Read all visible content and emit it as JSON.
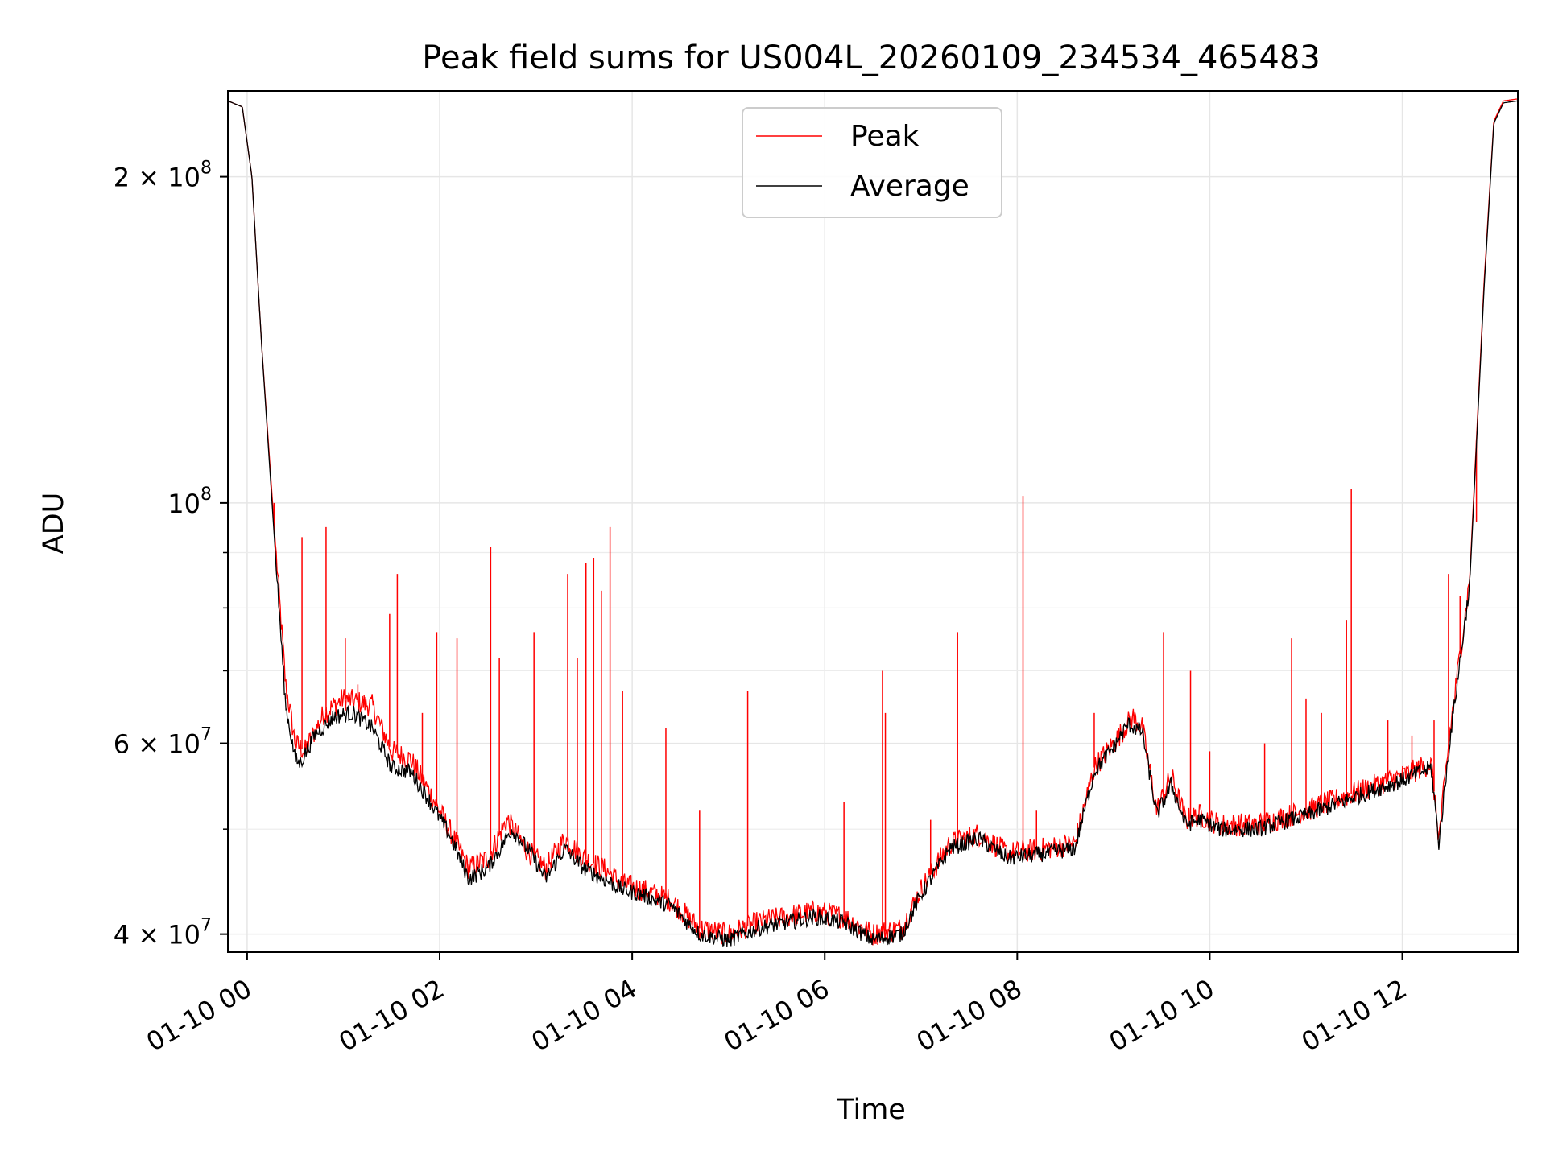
{
  "chart_data": {
    "type": "line",
    "title": "Peak field sums for US004L_20260109_234534_465483",
    "xlabel": "Time",
    "ylabel": "ADU",
    "yscale": "log",
    "xlim": [
      -0.2,
      13.2
    ],
    "ylim": [
      38500000,
      240000000
    ],
    "grid": true,
    "legend": "upper center",
    "x_ticks": [
      {
        "value": 0,
        "label": "01-10 00"
      },
      {
        "value": 2,
        "label": "01-10 02"
      },
      {
        "value": 4,
        "label": "01-10 04"
      },
      {
        "value": 6,
        "label": "01-10 06"
      },
      {
        "value": 8,
        "label": "01-10 08"
      },
      {
        "value": 10,
        "label": "01-10 10"
      },
      {
        "value": 12,
        "label": "01-10 12"
      }
    ],
    "y_ticks": [
      {
        "value": 40000000,
        "base": "4 × 10",
        "exp": "7"
      },
      {
        "value": 60000000,
        "base": "6 × 10",
        "exp": "7"
      },
      {
        "value": 100000000,
        "base": "10",
        "exp": "8"
      },
      {
        "value": 200000000,
        "base": "2 × 10",
        "exp": "8"
      }
    ],
    "y_minor_ticks": [
      50000000,
      70000000,
      80000000,
      90000000
    ],
    "x_units": "hours after 01-10 00:00",
    "series": [
      {
        "name": "Peak",
        "color": "#ff0000",
        "baseline": [
          [
            -0.2,
            235000000
          ],
          [
            -0.05,
            232000000
          ],
          [
            0.05,
            200000000
          ],
          [
            0.15,
            140000000
          ],
          [
            0.3,
            90000000
          ],
          [
            0.4,
            68000000
          ],
          [
            0.5,
            60000000
          ],
          [
            0.6,
            59000000
          ],
          [
            0.8,
            64000000
          ],
          [
            1.0,
            66000000
          ],
          [
            1.3,
            65000000
          ],
          [
            1.5,
            59000000
          ],
          [
            1.7,
            58000000
          ],
          [
            1.9,
            54000000
          ],
          [
            2.1,
            50000000
          ],
          [
            2.3,
            46000000
          ],
          [
            2.5,
            47000000
          ],
          [
            2.7,
            51000000
          ],
          [
            2.9,
            48000000
          ],
          [
            3.1,
            46000000
          ],
          [
            3.3,
            49000000
          ],
          [
            3.5,
            47000000
          ],
          [
            3.7,
            46000000
          ],
          [
            3.9,
            44500000
          ],
          [
            4.1,
            44000000
          ],
          [
            4.4,
            43000000
          ],
          [
            4.7,
            40500000
          ],
          [
            5.0,
            40000000
          ],
          [
            5.3,
            41000000
          ],
          [
            5.6,
            41500000
          ],
          [
            5.9,
            42000000
          ],
          [
            6.2,
            41500000
          ],
          [
            6.5,
            40000000
          ],
          [
            6.8,
            40500000
          ],
          [
            7.0,
            44000000
          ],
          [
            7.3,
            48500000
          ],
          [
            7.6,
            49500000
          ],
          [
            7.9,
            47500000
          ],
          [
            8.3,
            48000000
          ],
          [
            8.6,
            48500000
          ],
          [
            8.8,
            57000000
          ],
          [
            9.0,
            60000000
          ],
          [
            9.2,
            63500000
          ],
          [
            9.3,
            62000000
          ],
          [
            9.45,
            52000000
          ],
          [
            9.6,
            56000000
          ],
          [
            9.75,
            51000000
          ],
          [
            9.9,
            51500000
          ],
          [
            10.1,
            50500000
          ],
          [
            10.5,
            50500000
          ],
          [
            11.0,
            52000000
          ],
          [
            11.5,
            54000000
          ],
          [
            12.0,
            56000000
          ],
          [
            12.3,
            57500000
          ],
          [
            12.38,
            49000000
          ],
          [
            12.5,
            62000000
          ],
          [
            12.7,
            85000000
          ],
          [
            12.85,
            160000000
          ],
          [
            12.95,
            225000000
          ],
          [
            13.05,
            235000000
          ],
          [
            13.2,
            236000000
          ]
        ],
        "spikes": [
          [
            0.28,
            100000000
          ],
          [
            0.57,
            93000000
          ],
          [
            0.82,
            95000000
          ],
          [
            1.02,
            75000000
          ],
          [
            1.15,
            68000000
          ],
          [
            1.48,
            79000000
          ],
          [
            1.56,
            86000000
          ],
          [
            1.82,
            64000000
          ],
          [
            1.97,
            76000000
          ],
          [
            2.18,
            75000000
          ],
          [
            2.53,
            91000000
          ],
          [
            2.62,
            72000000
          ],
          [
            2.98,
            76000000
          ],
          [
            3.33,
            86000000
          ],
          [
            3.43,
            72000000
          ],
          [
            3.52,
            88000000
          ],
          [
            3.6,
            89000000
          ],
          [
            3.68,
            83000000
          ],
          [
            3.77,
            95000000
          ],
          [
            3.9,
            67000000
          ],
          [
            4.35,
            62000000
          ],
          [
            4.7,
            52000000
          ],
          [
            5.2,
            67000000
          ],
          [
            6.2,
            53000000
          ],
          [
            6.6,
            70000000
          ],
          [
            6.63,
            64000000
          ],
          [
            7.1,
            51000000
          ],
          [
            7.38,
            76000000
          ],
          [
            8.06,
            101500000
          ],
          [
            8.2,
            52000000
          ],
          [
            8.8,
            64000000
          ],
          [
            9.52,
            76000000
          ],
          [
            9.8,
            70000000
          ],
          [
            10.0,
            59000000
          ],
          [
            10.57,
            60000000
          ],
          [
            10.85,
            75000000
          ],
          [
            11.0,
            66000000
          ],
          [
            11.16,
            64000000
          ],
          [
            11.42,
            78000000
          ],
          [
            11.47,
            103000000
          ],
          [
            11.85,
            63000000
          ],
          [
            12.1,
            61000000
          ],
          [
            12.33,
            63000000
          ],
          [
            12.48,
            86000000
          ],
          [
            12.6,
            82000000
          ],
          [
            12.77,
            96000000
          ]
        ]
      },
      {
        "name": "Average",
        "color": "#000000",
        "baseline": [
          [
            -0.2,
            235000000
          ],
          [
            -0.05,
            232000000
          ],
          [
            0.05,
            200000000
          ],
          [
            0.15,
            140000000
          ],
          [
            0.3,
            88000000
          ],
          [
            0.4,
            65000000
          ],
          [
            0.5,
            58000000
          ],
          [
            0.55,
            57500000
          ],
          [
            0.7,
            61000000
          ],
          [
            0.9,
            63500000
          ],
          [
            1.1,
            64000000
          ],
          [
            1.3,
            62000000
          ],
          [
            1.5,
            57000000
          ],
          [
            1.7,
            56500000
          ],
          [
            1.9,
            53000000
          ],
          [
            2.1,
            49500000
          ],
          [
            2.3,
            45000000
          ],
          [
            2.5,
            46000000
          ],
          [
            2.75,
            50000000
          ],
          [
            2.95,
            47500000
          ],
          [
            3.1,
            45000000
          ],
          [
            3.3,
            48000000
          ],
          [
            3.5,
            46000000
          ],
          [
            3.7,
            45000000
          ],
          [
            3.9,
            44000000
          ],
          [
            4.1,
            43500000
          ],
          [
            4.4,
            42500000
          ],
          [
            4.7,
            40000000
          ],
          [
            5.0,
            39500000
          ],
          [
            5.3,
            40500000
          ],
          [
            5.6,
            41000000
          ],
          [
            5.9,
            41500000
          ],
          [
            6.2,
            41000000
          ],
          [
            6.5,
            39500000
          ],
          [
            6.8,
            40000000
          ],
          [
            7.0,
            43500000
          ],
          [
            7.3,
            48000000
          ],
          [
            7.6,
            49000000
          ],
          [
            7.9,
            47000000
          ],
          [
            8.3,
            47500000
          ],
          [
            8.6,
            48000000
          ],
          [
            8.8,
            56500000
          ],
          [
            9.0,
            59500000
          ],
          [
            9.15,
            62500000
          ],
          [
            9.3,
            61500000
          ],
          [
            9.45,
            51500000
          ],
          [
            9.6,
            55000000
          ],
          [
            9.75,
            50500000
          ],
          [
            9.9,
            51000000
          ],
          [
            10.1,
            50000000
          ],
          [
            10.5,
            50000000
          ],
          [
            11.0,
            51500000
          ],
          [
            11.5,
            53500000
          ],
          [
            12.0,
            55500000
          ],
          [
            12.3,
            57000000
          ],
          [
            12.38,
            48500000
          ],
          [
            12.5,
            61000000
          ],
          [
            12.7,
            84000000
          ],
          [
            12.85,
            158000000
          ],
          [
            12.95,
            224000000
          ],
          [
            13.05,
            234000000
          ],
          [
            13.2,
            235000000
          ]
        ]
      }
    ]
  }
}
